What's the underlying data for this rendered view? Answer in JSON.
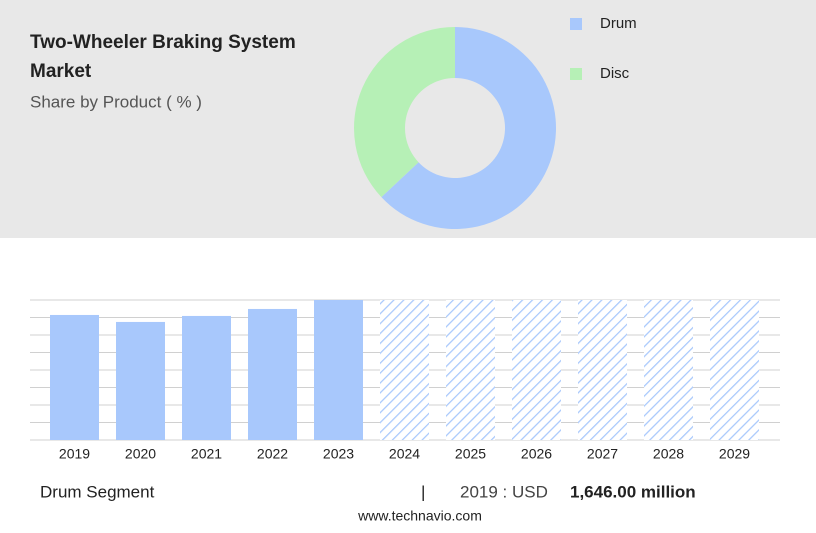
{
  "chart_data": [
    {
      "type": "donut",
      "title": "Two-Wheeler Braking System Market",
      "subtitle": "Share by Product ( % )",
      "categories": [
        "Drum",
        "Disc"
      ],
      "values": [
        63,
        37
      ],
      "colors": [
        "#a8c8fc",
        "#b6f0b6"
      ],
      "legend": "right"
    },
    {
      "type": "bar",
      "categories": [
        "2019",
        "2020",
        "2021",
        "2022",
        "2023",
        "2024",
        "2025",
        "2026",
        "2027",
        "2028",
        "2029"
      ],
      "values": [
        1646,
        1554,
        1633,
        1725,
        1843,
        null,
        null,
        null,
        null,
        null,
        null
      ],
      "value_labels": [
        "1,646.00 million",
        null,
        null,
        null,
        null,
        null,
        null,
        null,
        null,
        null,
        null
      ],
      "color": "#a8c8fc",
      "ylim": [
        0,
        1843
      ],
      "grid": true
    }
  ],
  "footer": {
    "segment": "Drum Segment",
    "separator": "|",
    "prefix": "2019 : USD",
    "source": "www.technavio.com"
  }
}
